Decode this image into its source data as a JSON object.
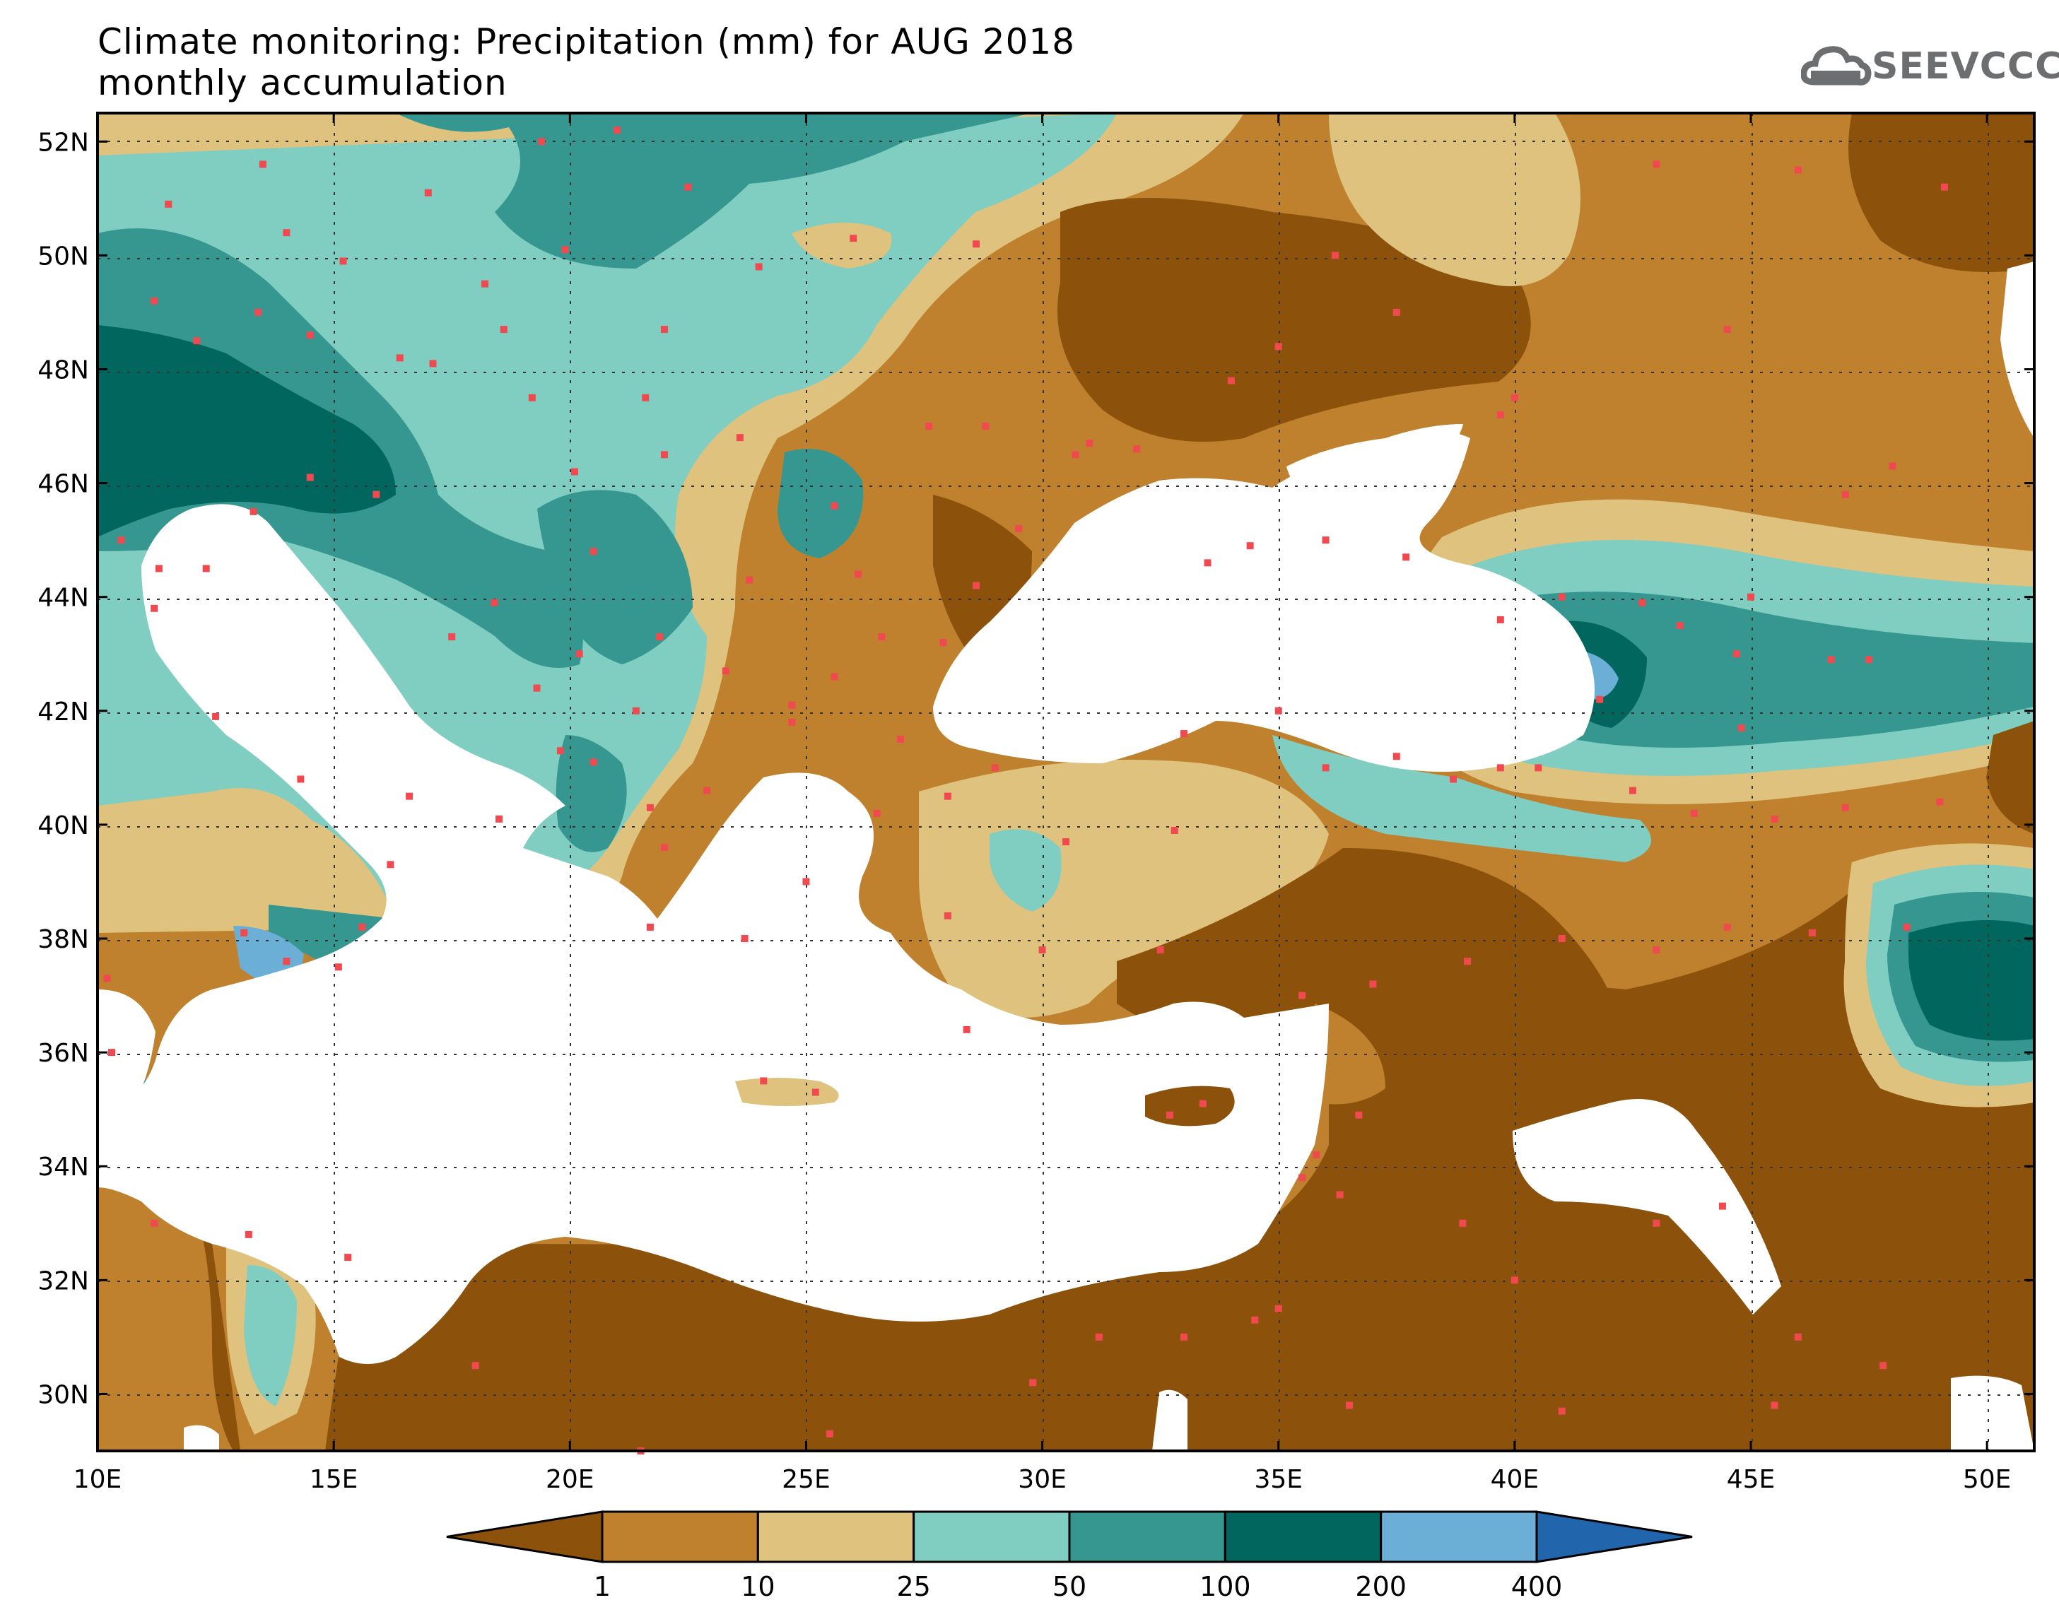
{
  "title": {
    "line1": "Climate monitoring: Precipitation (mm) for AUG 2018",
    "line2": "monthly accumulation"
  },
  "logo": {
    "text": "SEEVCCC",
    "icon": "cloud-icon",
    "color": "#6d6e70"
  },
  "map": {
    "lon_range": [
      10,
      51
    ],
    "lat_range": [
      29,
      52.5
    ],
    "lon_ticks": [
      "10E",
      "15E",
      "20E",
      "25E",
      "30E",
      "35E",
      "40E",
      "45E",
      "50E"
    ],
    "lat_ticks": [
      "52N",
      "50N",
      "48N",
      "46N",
      "44N",
      "42N",
      "40N",
      "38N",
      "36N",
      "34N",
      "32N",
      "30N"
    ],
    "grid": "dotted",
    "station_color": "#f04a50"
  },
  "colorbar": {
    "thresholds": [
      "1",
      "10",
      "25",
      "50",
      "100",
      "200",
      "400"
    ],
    "colors": [
      "#8c510a",
      "#bf812d",
      "#dfc27d",
      "#80cdc1",
      "#35978f",
      "#01665e",
      "#6baed6",
      "#2166ac"
    ]
  }
}
